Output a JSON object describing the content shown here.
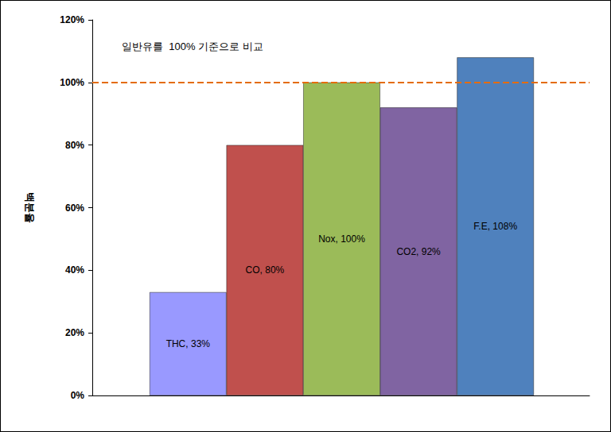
{
  "chart_data": {
    "type": "bar",
    "annotation": "일반유를  100% 기준으로 비교",
    "y_label": "백분율",
    "categories": [
      "THC",
      "CO",
      "Nox",
      "CO2",
      "F.E"
    ],
    "values": [
      33,
      80,
      100,
      92,
      108
    ],
    "value_labels": [
      "THC, 33%",
      "CO, 80%",
      "Nox, 100%",
      "CO2, 92%",
      "F.E, 108%"
    ],
    "colors": [
      "#9999ff",
      "#c0504d",
      "#9bbb59",
      "#8064a2",
      "#4f81bd"
    ],
    "data_labels": true,
    "tick_labels": "y",
    "grid": false,
    "ylim": [
      0,
      120
    ],
    "yticks": [
      {
        "value": 0,
        "label": "0%"
      },
      {
        "value": 20,
        "label": "20%"
      },
      {
        "value": 40,
        "label": "40%"
      },
      {
        "value": 60,
        "label": "60%"
      },
      {
        "value": 80,
        "label": "80%"
      },
      {
        "value": 100,
        "label": "100%"
      },
      {
        "value": 120,
        "label": "120%"
      }
    ],
    "reference_line": {
      "value": 100,
      "color": "#e46c0a",
      "line_style": "dashed"
    }
  }
}
